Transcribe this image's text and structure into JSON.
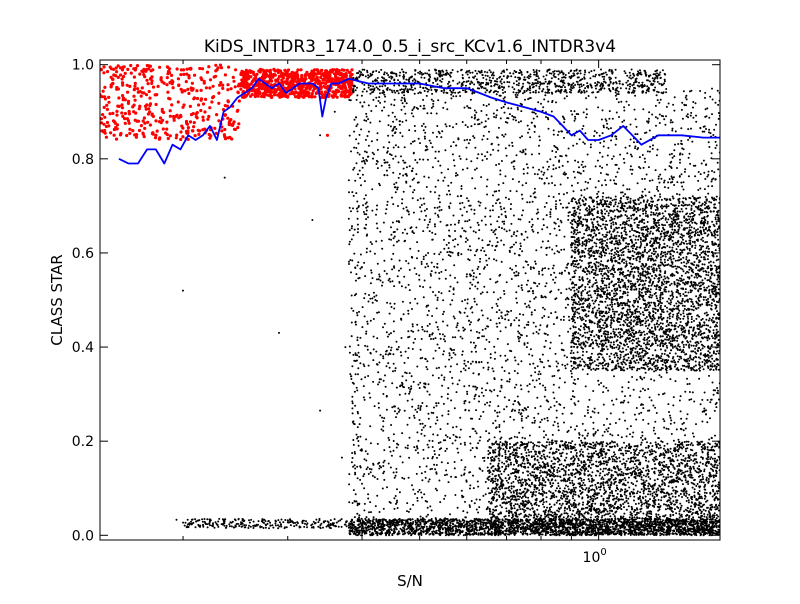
{
  "chart_data": {
    "type": "scatter",
    "title": "KiDS_INTDR3_174.0_0.5_i_src_KCv1.6_INTDR3v4",
    "xlabel": "S/N",
    "ylabel": "CLASS STAR",
    "xscale": "log",
    "xlim": [
      0.145,
      1.6
    ],
    "ylim": [
      -0.01,
      1.01
    ],
    "grid": false,
    "legend": "none",
    "x_major_ticks": [
      {
        "value": 1.0,
        "label": "10^0",
        "base": "10",
        "exp": "0"
      }
    ],
    "x_minor_ticks": [
      0.2,
      0.3,
      0.4,
      0.5,
      0.6,
      0.7,
      0.8,
      0.9
    ],
    "y_ticks": [
      {
        "value": 0.0,
        "label": "0.0"
      },
      {
        "value": 0.2,
        "label": "0.2"
      },
      {
        "value": 0.4,
        "label": "0.4"
      },
      {
        "value": 0.6,
        "label": "0.6"
      },
      {
        "value": 0.8,
        "label": "0.8"
      },
      {
        "value": 1.0,
        "label": "1.0"
      }
    ],
    "colors": {
      "all_sources": "#000000",
      "selected_stars": "#ff0000",
      "running_median": "#0000ff"
    },
    "series": [
      {
        "kind": "scatter",
        "color": "#000000",
        "regions": [
          {
            "x": [
              0.38,
              1.3
            ],
            "y": [
              0.94,
              0.99
            ],
            "density": "high",
            "count": 900
          },
          {
            "x": [
              0.38,
              1.6
            ],
            "y": [
              0.0,
              0.035
            ],
            "density": "high",
            "count": 2200
          },
          {
            "x": [
              0.2,
              0.38
            ],
            "y": [
              0.015,
              0.035
            ],
            "density": "medium",
            "count": 260
          },
          {
            "x": [
              0.9,
              1.6
            ],
            "y": [
              0.35,
              0.72
            ],
            "density": "high",
            "count": 3200
          },
          {
            "x": [
              0.65,
              1.6
            ],
            "y": [
              0.0,
              0.2
            ],
            "density": "high",
            "count": 2600
          },
          {
            "x": [
              0.38,
              1.6
            ],
            "y": [
              0.0,
              0.95
            ],
            "density": "low",
            "count": 4200
          }
        ],
        "isolated_points": [
          {
            "x": 0.195,
            "y": 0.033
          },
          {
            "x": 0.2,
            "y": 0.52
          },
          {
            "x": 0.235,
            "y": 0.76
          },
          {
            "x": 0.29,
            "y": 0.43
          },
          {
            "x": 0.33,
            "y": 0.67
          },
          {
            "x": 0.34,
            "y": 0.265
          },
          {
            "x": 0.37,
            "y": 0.165
          },
          {
            "x": 0.375,
            "y": 0.4
          },
          {
            "x": 0.34,
            "y": 0.85
          },
          {
            "x": 0.36,
            "y": 0.9
          }
        ]
      },
      {
        "kind": "scatter",
        "color": "#ff0000",
        "regions": [
          {
            "x": [
              0.145,
              0.25
            ],
            "y": [
              0.84,
              1.0
            ],
            "density": "medium",
            "count": 420
          },
          {
            "x": [
              0.25,
              0.385
            ],
            "y": [
              0.93,
              0.99
            ],
            "density": "high",
            "count": 700
          }
        ],
        "isolated_points": [
          {
            "x": 0.35,
            "y": 0.85
          },
          {
            "x": 0.15,
            "y": 0.87
          }
        ]
      },
      {
        "kind": "line",
        "color": "#0000ff",
        "x": [
          0.156,
          0.162,
          0.168,
          0.174,
          0.18,
          0.186,
          0.192,
          0.198,
          0.204,
          0.21,
          0.216,
          0.222,
          0.228,
          0.234,
          0.24,
          0.247,
          0.254,
          0.261,
          0.268,
          0.275,
          0.282,
          0.29,
          0.298,
          0.306,
          0.314,
          0.322,
          0.33,
          0.338,
          0.343,
          0.348,
          0.355,
          0.365,
          0.38,
          0.41,
          0.45,
          0.5,
          0.55,
          0.6,
          0.63,
          0.66,
          0.7,
          0.75,
          0.8,
          0.84,
          0.87,
          0.9,
          0.93,
          0.96,
          1.0,
          1.05,
          1.1,
          1.18,
          1.26,
          1.38,
          1.5,
          1.6
        ],
        "y": [
          0.8,
          0.79,
          0.79,
          0.82,
          0.82,
          0.79,
          0.83,
          0.82,
          0.85,
          0.84,
          0.85,
          0.87,
          0.84,
          0.9,
          0.91,
          0.93,
          0.94,
          0.95,
          0.97,
          0.96,
          0.95,
          0.96,
          0.94,
          0.95,
          0.96,
          0.96,
          0.96,
          0.95,
          0.89,
          0.93,
          0.96,
          0.96,
          0.97,
          0.96,
          0.96,
          0.96,
          0.95,
          0.95,
          0.94,
          0.93,
          0.92,
          0.91,
          0.9,
          0.89,
          0.87,
          0.85,
          0.86,
          0.84,
          0.84,
          0.85,
          0.87,
          0.83,
          0.85,
          0.85,
          0.845,
          0.845
        ]
      }
    ]
  }
}
